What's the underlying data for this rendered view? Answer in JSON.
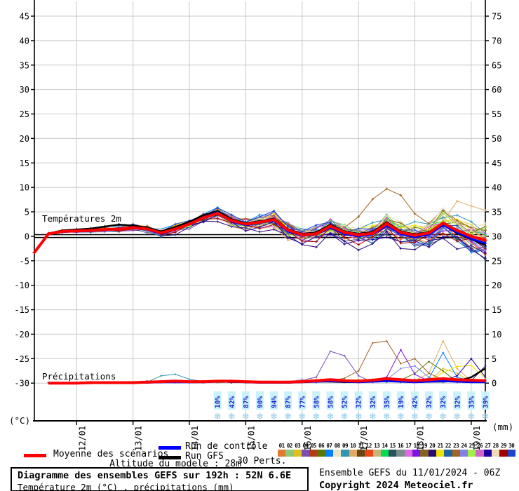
{
  "meta": {
    "title_line1": "Diagramme des ensembles GEFS sur 192h : 52N 6.6E",
    "title_line2": "Température 2m (°C) , précipitations (mm)",
    "altitude": "Altitude du modele : 28m",
    "run_info": "Ensemble GEFS du 11/01/2024 - 06Z",
    "copyright": "Copyright 2024 Meteociel.fr"
  },
  "legend": {
    "mean_label": "Moyenne des scénarios",
    "control_label": "Run de contrôle",
    "gfs_label": "Run GFS",
    "perts_label": "30 Perts."
  },
  "chart_data": {
    "type": "line",
    "x_start_hour": 0,
    "x_end_hour": 192,
    "x_step_hour": 6,
    "x_day_labels": [
      {
        "hour": 18,
        "label": "12/01"
      },
      {
        "hour": 42,
        "label": "13/01"
      },
      {
        "hour": 66,
        "label": "14/01"
      },
      {
        "hour": 90,
        "label": "15/01"
      },
      {
        "hour": 114,
        "label": "16/01"
      },
      {
        "hour": 138,
        "label": "17/01"
      },
      {
        "hour": 162,
        "label": "18/01"
      },
      {
        "hour": 186,
        "label": "19/01"
      }
    ],
    "y_axis_left": {
      "unit": "(°C)",
      "min": -30,
      "max": 45,
      "ticks": [
        45,
        40,
        35,
        30,
        25,
        20,
        15,
        10,
        5,
        0,
        -5,
        -10,
        -15,
        -20,
        -25,
        -30
      ]
    },
    "y_axis_right": {
      "unit": "(mm)",
      "min": 0,
      "max": 75,
      "ticks": [
        75,
        70,
        65,
        60,
        55,
        50,
        45,
        40,
        35,
        30,
        25,
        20,
        15,
        10,
        5,
        0
      ]
    },
    "temp_label": "Températures 2m",
    "precip_label": "Précipitations",
    "zero_line_c": 0,
    "grid_color": "#c8c8c8",
    "series": {
      "mean": {
        "color": "#ff0000",
        "temp": [
          -3.3,
          0.5,
          1.0,
          1.1,
          1.2,
          1.4,
          1.5,
          1.8,
          1.5,
          0.7,
          1.5,
          2.5,
          3.8,
          4.7,
          3.2,
          2.5,
          2.9,
          3.4,
          1.3,
          0.3,
          0.5,
          2.1,
          0.8,
          0.3,
          0.6,
          2.6,
          0.8,
          0.2,
          0.7,
          2.7,
          1.2,
          0.0,
          -0.8
        ],
        "precip": [
          null,
          0,
          0,
          0,
          0.1,
          0.1,
          0.1,
          0.1,
          0.2,
          0.3,
          0.4,
          0.3,
          0.3,
          0.4,
          0.4,
          0.3,
          0.2,
          0.2,
          0.2,
          0.3,
          0.5,
          0.7,
          0.5,
          0.4,
          0.6,
          0.9,
          0.7,
          0.5,
          0.7,
          0.9,
          0.7,
          0.6,
          0.5
        ]
      },
      "control": {
        "color": "#0000ff",
        "temp": [
          -3.3,
          0.4,
          0.9,
          1.0,
          1.1,
          1.3,
          1.6,
          1.7,
          1.4,
          0.5,
          1.4,
          2.6,
          3.9,
          4.9,
          3.0,
          2.3,
          2.8,
          3.2,
          1.0,
          0.1,
          0.4,
          1.8,
          0.5,
          0.0,
          0.4,
          2.2,
          0.5,
          -0.2,
          0.4,
          2.3,
          0.8,
          -0.5,
          -1.4
        ],
        "precip": [
          null,
          0,
          0,
          0,
          0,
          0.1,
          0.1,
          0.1,
          0.1,
          0.2,
          0.2,
          0.2,
          0.2,
          0.3,
          0.3,
          0.2,
          0.1,
          0.1,
          0.1,
          0.2,
          0.3,
          0.4,
          0.3,
          0.2,
          0.3,
          0.4,
          0.3,
          0.2,
          0.3,
          0.4,
          0.3,
          0.2,
          0.2
        ]
      },
      "gfs": {
        "color": "#000000",
        "temp": [
          -3.3,
          0.6,
          1.2,
          1.4,
          1.6,
          2.0,
          2.4,
          2.2,
          1.8,
          1.0,
          1.9,
          3.0,
          4.3,
          5.2,
          3.5,
          2.7,
          3.1,
          3.6,
          1.5,
          0.5,
          0.8,
          2.4,
          1.0,
          0.5,
          0.9,
          2.9,
          1.0,
          0.4,
          0.9,
          2.4,
          0.6,
          -0.6,
          -1.8
        ],
        "precip": [
          null,
          0,
          0,
          0,
          0,
          0,
          0.1,
          0.1,
          0.1,
          0.2,
          0.3,
          0.2,
          0.2,
          0.3,
          0.3,
          0.2,
          0.1,
          0.1,
          0.1,
          0.2,
          0.3,
          0.3,
          0.2,
          0.2,
          0.4,
          0.5,
          0.3,
          0.2,
          0.3,
          0.3,
          0.4,
          1.2,
          3.0
        ]
      }
    },
    "members": [
      {
        "id": "01",
        "color": "#e07a2e",
        "bias": [
          0.3,
          0.5,
          -1.5
        ],
        "seed": 1
      },
      {
        "id": "02",
        "color": "#8cc878",
        "bias": [
          -0.2,
          0.8,
          1.0
        ],
        "seed": 2
      },
      {
        "id": "03",
        "color": "#e0c020",
        "bias": [
          0.4,
          -0.6,
          1.8
        ],
        "seed": 3,
        "precip_overrides": {
          "29": 3.0,
          "30": 2.0
        }
      },
      {
        "id": "04",
        "color": "#7a50b4",
        "bias": [
          -0.4,
          -1.0,
          -2.0
        ],
        "seed": 4,
        "precip_overrides": {
          "20": 1.2,
          "21": 6.5,
          "22": 5.6,
          "23": 1.5
        }
      },
      {
        "id": "05",
        "color": "#b43c14",
        "bias": [
          0.2,
          0.6,
          -0.5
        ],
        "seed": 5
      },
      {
        "id": "06",
        "color": "#587800",
        "bias": [
          -0.3,
          -0.4,
          1.2
        ],
        "seed": 6,
        "precip_overrides": {
          "27": 2.0,
          "28": 4.4,
          "29": 2.5
        }
      },
      {
        "id": "07",
        "color": "#0082ff",
        "bias": [
          0.5,
          0.9,
          -2.4
        ],
        "seed": 7,
        "precip_overrides": {
          "28": 1.0,
          "29": 6.2,
          "30": 1.2
        }
      },
      {
        "id": "08",
        "color": "#ece4c4",
        "bias": [
          0.1,
          -1.3,
          2.2
        ],
        "seed": 8
      },
      {
        "id": "09",
        "color": "#2e96b4",
        "bias": [
          -0.5,
          0.3,
          2.6
        ],
        "seed": 9,
        "precip_overrides": {
          "9": 1.5,
          "10": 1.8,
          "11": 0.8
        }
      },
      {
        "id": "10",
        "color": "#e0aa64",
        "bias": [
          0.3,
          -1.5,
          3.0
        ],
        "seed": 10,
        "temp_overrides": {
          "27": 0.8,
          "28": 1.5,
          "29": 3.0,
          "30": 7.2,
          "31": 6.2,
          "32": 5.3
        },
        "precip_overrides": {
          "28": 2.0,
          "29": 8.6,
          "30": 3.0
        }
      },
      {
        "id": "11",
        "color": "#644614",
        "bias": [
          -0.1,
          0.4,
          -1.0
        ],
        "seed": 11
      },
      {
        "id": "12",
        "color": "#e84614",
        "bias": [
          0.4,
          0.2,
          -1.8
        ],
        "seed": 12
      },
      {
        "id": "13",
        "color": "#c8b478",
        "bias": [
          0.0,
          -0.8,
          1.5
        ],
        "seed": 13
      },
      {
        "id": "14",
        "color": "#00dc50",
        "bias": [
          -0.3,
          0.7,
          0.5
        ],
        "seed": 14
      },
      {
        "id": "15",
        "color": "#28505f",
        "bias": [
          0.2,
          -0.2,
          -2.8
        ],
        "seed": 15
      },
      {
        "id": "16",
        "color": "#788c8c",
        "bias": [
          -0.4,
          0.5,
          -0.7
        ],
        "seed": 16
      },
      {
        "id": "17",
        "color": "#e068e0",
        "bias": [
          0.3,
          -1.1,
          0.8
        ],
        "seed": 17
      },
      {
        "id": "18",
        "color": "#7a14e0",
        "bias": [
          -0.2,
          0.9,
          -1.3
        ],
        "seed": 18,
        "precip_overrides": {
          "25": 1.2,
          "26": 6.8,
          "27": 1.8
        }
      },
      {
        "id": "19",
        "color": "#82641e",
        "bias": [
          0.1,
          -0.5,
          2.0
        ],
        "seed": 19
      },
      {
        "id": "20",
        "color": "#2a0a78",
        "bias": [
          -0.5,
          -1.8,
          -3.0
        ],
        "seed": 20,
        "precip_overrides": {
          "32": 3.5
        }
      },
      {
        "id": "21",
        "color": "#f0e000",
        "bias": [
          0.4,
          0.6,
          1.3
        ],
        "seed": 21,
        "precip_overrides": {
          "29": 2.2,
          "30": 3.4,
          "31": 3.6,
          "32": 1.0
        }
      },
      {
        "id": "22",
        "color": "#1e64a0",
        "bias": [
          -0.1,
          -0.3,
          -2.2
        ],
        "seed": 22
      },
      {
        "id": "23",
        "color": "#a06423",
        "bias": [
          0.2,
          0.5,
          1.0
        ],
        "seed": 23,
        "temp_overrides": {
          "21": 2.5,
          "22": 1.8,
          "23": 4.0,
          "24": 7.6,
          "25": 9.7,
          "26": 8.4,
          "27": 4.6,
          "28": 2.6,
          "29": 5.5,
          "30": 3.2,
          "31": 1.8,
          "32": 1.2
        },
        "precip_overrides": {
          "22": 1.0,
          "23": 2.5,
          "24": 8.2,
          "25": 8.6,
          "26": 4.0,
          "27": 5.0,
          "28": 2.0
        }
      },
      {
        "id": "24",
        "color": "#8282e6",
        "bias": [
          -0.3,
          1.1,
          -0.9
        ],
        "seed": 24,
        "precip_overrides": {
          "26": 3.0,
          "27": 3.5,
          "28": 1.2
        }
      },
      {
        "id": "25",
        "color": "#a0f046",
        "bias": [
          0.2,
          -0.7,
          1.6
        ],
        "seed": 25
      },
      {
        "id": "26",
        "color": "#d264c8",
        "bias": [
          -0.4,
          0.8,
          0.3
        ],
        "seed": 26
      },
      {
        "id": "27",
        "color": "#1e00a0",
        "bias": [
          0.1,
          -1.2,
          -2.6
        ],
        "seed": 27,
        "precip_overrides": {
          "30": 1.5,
          "31": 5.0,
          "32": 1.2
        }
      },
      {
        "id": "28",
        "color": "#ecdcb4",
        "bias": [
          0.3,
          0.1,
          2.4
        ],
        "seed": 28
      },
      {
        "id": "29",
        "color": "#a00000",
        "bias": [
          -0.2,
          -0.9,
          -1.6
        ],
        "seed": 29
      },
      {
        "id": "30",
        "color": "#1e46c8",
        "bias": [
          0.4,
          1.2,
          -0.4
        ],
        "seed": 30
      }
    ],
    "snow_risk": {
      "start_hour": 78,
      "step_hour": 6,
      "icon_char": "❄",
      "icon_color": "#8cc8e8",
      "label_color": "#1c1ccc",
      "label_bg": "#c8f2fc",
      "values_pct": [
        10,
        42,
        87,
        90,
        94,
        87,
        77,
        58,
        58,
        52,
        32,
        32,
        35,
        19,
        42,
        32,
        32,
        32,
        35,
        39
      ]
    }
  }
}
